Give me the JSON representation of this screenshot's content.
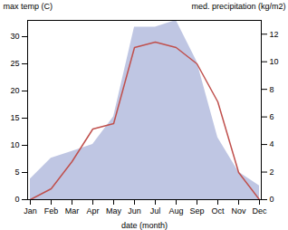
{
  "chart_data": {
    "type": "line",
    "xlabel": "date (month)",
    "ylabel": "max temp (C)",
    "y2label": "med. precipitation (kg/m2)",
    "categories": [
      "Jan",
      "Feb",
      "Mar",
      "Apr",
      "May",
      "Jun",
      "Jul",
      "Aug",
      "Sep",
      "Oct",
      "Nov",
      "Dec"
    ],
    "series": [
      {
        "type": "area",
        "axis": "y2",
        "color": "#b8c0e0",
        "values": [
          1.5,
          3.0,
          3.5,
          4.0,
          6.0,
          12.5,
          12.5,
          13.0,
          10.0,
          4.5,
          2.0,
          1.0
        ]
      },
      {
        "type": "line",
        "color": "#c0504d",
        "values": [
          0,
          2,
          7,
          13,
          14,
          28,
          29,
          28,
          25,
          18,
          5,
          0
        ]
      }
    ],
    "ylim": [
      0,
      33
    ],
    "yticks": [
      0,
      5,
      10,
      15,
      20,
      25,
      30
    ],
    "y2lim": [
      0,
      13
    ],
    "y2ticks": [
      0,
      2,
      4,
      6,
      8,
      10,
      12
    ],
    "grid": false
  }
}
